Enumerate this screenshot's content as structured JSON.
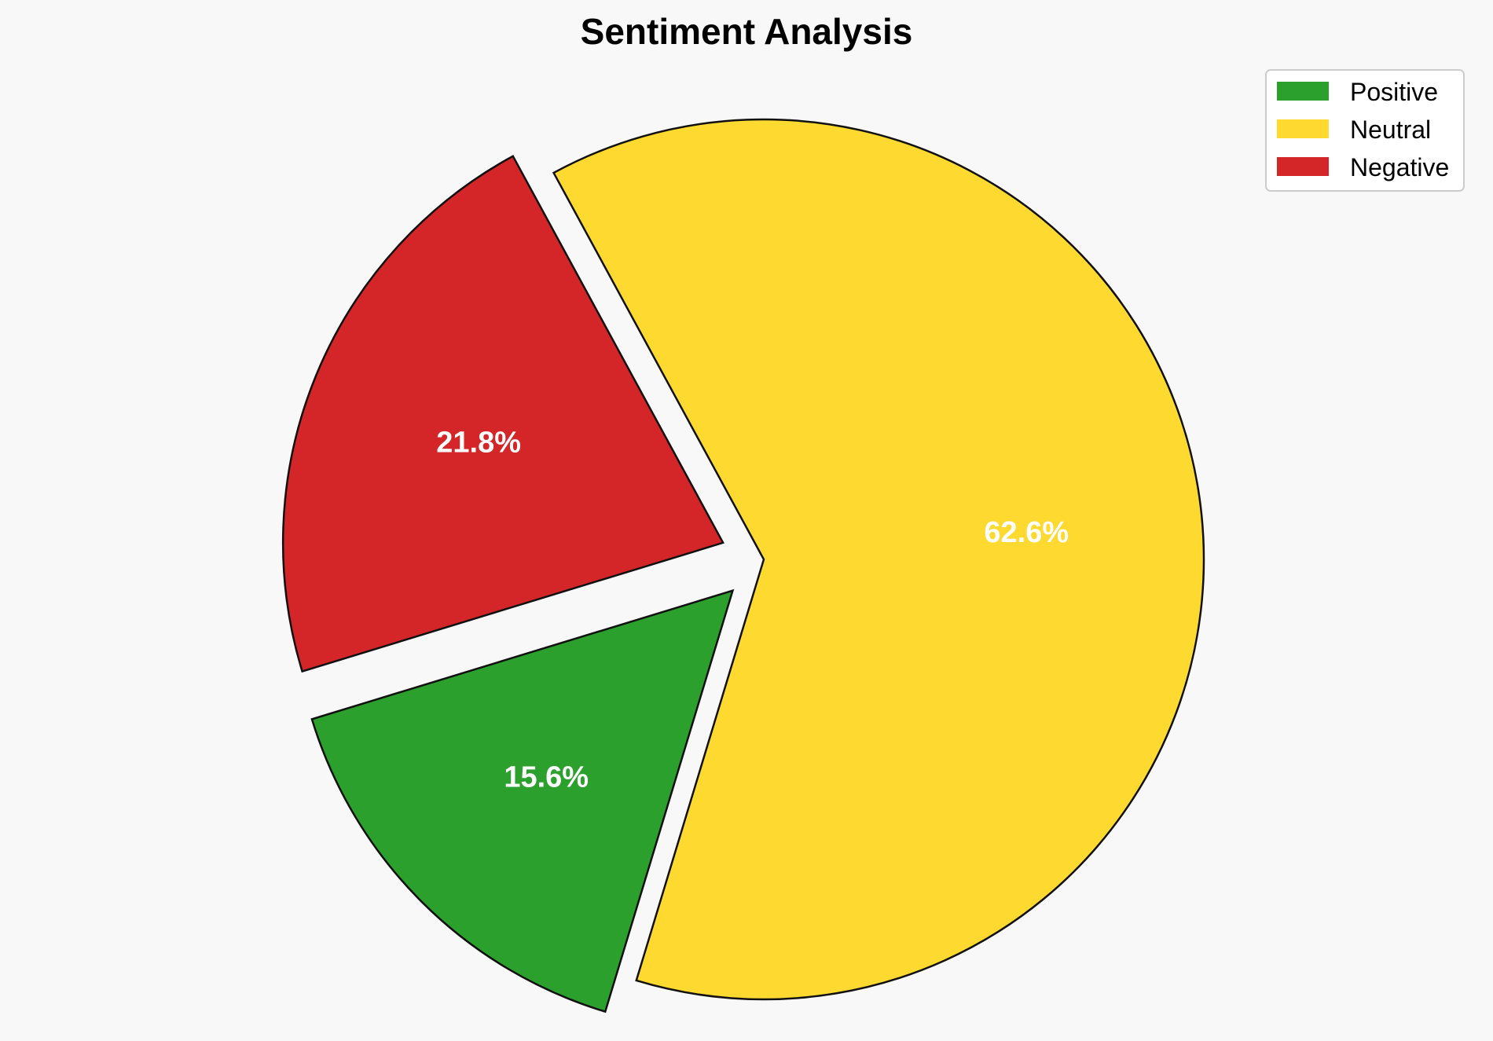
{
  "chart_data": {
    "type": "pie",
    "title": "Sentiment Analysis",
    "categories": [
      "Positive",
      "Neutral",
      "Negative"
    ],
    "values": [
      15.6,
      62.6,
      21.8
    ],
    "labels": [
      "15.6%",
      "62.6%",
      "21.8%"
    ],
    "colors": [
      "#2ca02c",
      "#fed92f",
      "#d42628"
    ],
    "exploded": [
      true,
      false,
      true
    ],
    "legend_position": "top-right",
    "start_angle_degrees": 197
  }
}
